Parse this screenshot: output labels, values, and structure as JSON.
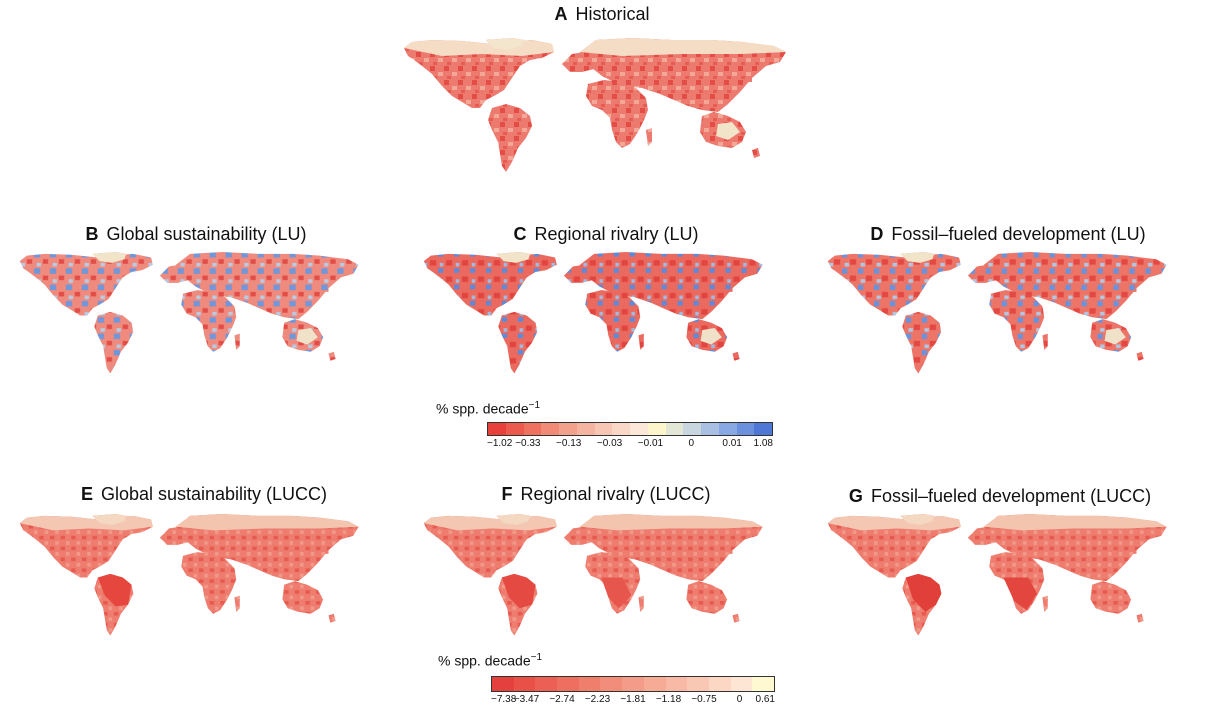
{
  "panels": [
    {
      "id": "A",
      "letter": "A",
      "title": "Historical",
      "scheme": "hist"
    },
    {
      "id": "B",
      "letter": "B",
      "title": "Global sustainability (LU)",
      "scheme": "lu_gs"
    },
    {
      "id": "C",
      "letter": "C",
      "title": "Regional rivalry (LU)",
      "scheme": "lu_rr"
    },
    {
      "id": "D",
      "letter": "D",
      "title": "Fossil–fueled development (LU)",
      "scheme": "lu_ff"
    },
    {
      "id": "E",
      "letter": "E",
      "title": "Global sustainability (LUCC)",
      "scheme": "lucc_gs"
    },
    {
      "id": "F",
      "letter": "F",
      "title": "Regional rivalry (LUCC)",
      "scheme": "lucc_rr"
    },
    {
      "id": "G",
      "letter": "G",
      "title": "Fossil–fueled development (LUCC)",
      "scheme": "lucc_ff"
    }
  ],
  "legend_lu": {
    "title": "% spp. decade",
    "exponent": "−1",
    "colors": [
      "#e8403a",
      "#ec5a4d",
      "#ef7160",
      "#f18a76",
      "#f3a08c",
      "#f5b3a1",
      "#f7c6b5",
      "#f9d8c8",
      "#fbe8d9",
      "#fdf6cc",
      "#e3e8d6",
      "#c8d6e0",
      "#a9c0e3",
      "#88a9e3",
      "#6a90de",
      "#4f77d6"
    ],
    "ticks": [
      "−1.02",
      "−0.33",
      "−0.13",
      "−0.03",
      "−0.01",
      "0",
      "0.01",
      "1.08"
    ]
  },
  "legend_lucc": {
    "title": "% spp. decade",
    "exponent": "−1",
    "colors": [
      "#e4403d",
      "#e85048",
      "#eb5f54",
      "#ee6f60",
      "#f07e6d",
      "#f28d7b",
      "#f49c89",
      "#f6ab97",
      "#f8baa6",
      "#f9c8b5",
      "#fbd7c4",
      "#fde6d4",
      "#fef9d0"
    ],
    "ticks": [
      "−7.38",
      "−3.47",
      "−2.74",
      "−2.23",
      "−1.81",
      "−1.18",
      "−0.75",
      "0",
      "0.61"
    ]
  }
}
